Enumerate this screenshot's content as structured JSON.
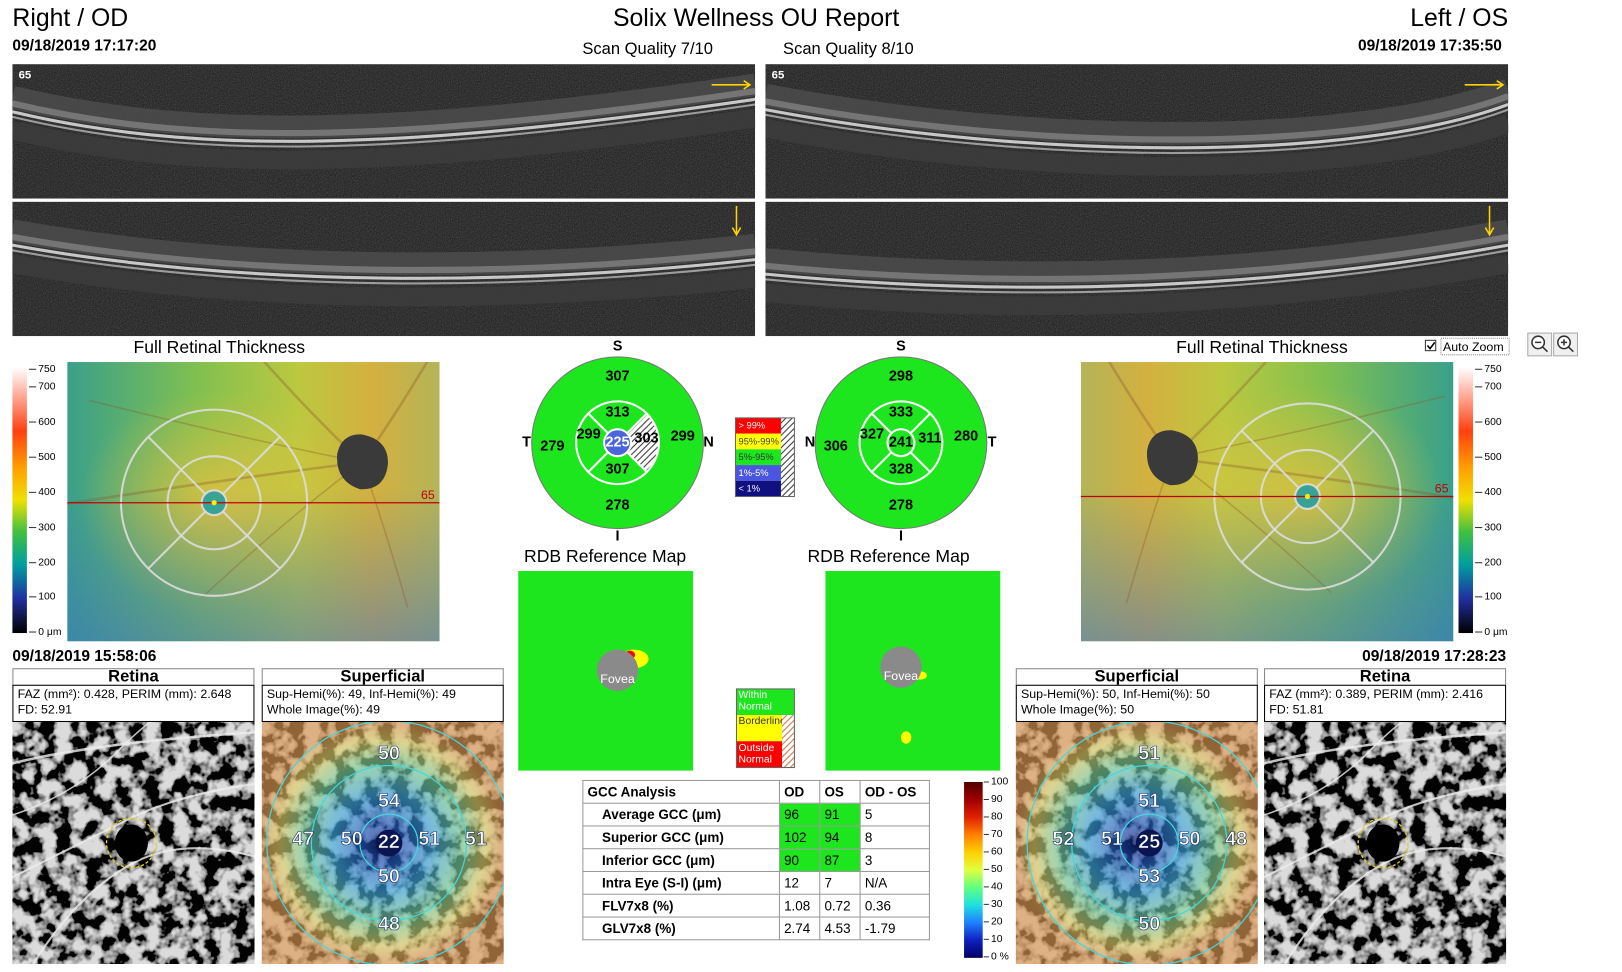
{
  "header": {
    "title": "Solix Wellness OU Report",
    "auto_zoom": "Auto Zoom"
  },
  "od": {
    "side": "Right / OD",
    "datetime": "09/18/2019 17:17:20",
    "scan_quality": "Scan Quality 7/10",
    "bscan_label": "65",
    "thickness_title": "Full Retinal Thickness",
    "scan_line_label": "65",
    "sector_labels": [
      "S",
      "I",
      "T",
      "N"
    ],
    "sector_values": [
      "307",
      "313",
      "299",
      "225",
      "303",
      "307",
      "278",
      "279",
      "299"
    ],
    "rdb_title": "RDB Reference Map",
    "fovea": "Fovea",
    "angio_datetime": "09/18/2019 15:58:06",
    "retina": {
      "header": "Retina",
      "lines": [
        "FAZ (mm²): 0.428, PERIM (mm): 2.648",
        "FD: 52.91"
      ]
    },
    "superficial": {
      "header": "Superficial",
      "lines": [
        "Sup-Hemi(%): 49, Inf-Hemi(%): 49",
        "Whole Image(%): 49"
      ],
      "values": [
        "50",
        "54",
        "47",
        "50",
        "22",
        "51",
        "51",
        "50",
        "48"
      ]
    }
  },
  "os": {
    "side": "Left / OS",
    "datetime": "09/18/2019 17:35:50",
    "scan_quality": "Scan Quality 8/10",
    "bscan_label": "65",
    "thickness_title": "Full Retinal Thickness",
    "scan_line_label": "65",
    "sector_labels": [
      "S",
      "I",
      "N",
      "T"
    ],
    "sector_values": [
      "298",
      "333",
      "327",
      "241",
      "311",
      "328",
      "278",
      "306",
      "280"
    ],
    "rdb_title": "RDB Reference Map",
    "fovea": "Fovea",
    "angio_datetime": "09/18/2019 17:28:23",
    "retina": {
      "header": "Retina",
      "lines": [
        "FAZ (mm²): 0.389, PERIM (mm): 2.416",
        "FD: 51.81"
      ]
    },
    "superficial": {
      "header": "Superficial",
      "lines": [
        "Sup-Hemi(%): 50, Inf-Hemi(%): 50",
        "Whole Image(%): 50"
      ],
      "values": [
        "51",
        "51",
        "52",
        "51",
        "25",
        "50",
        "48",
        "53",
        "50"
      ]
    }
  },
  "thickness_scale": [
    "750",
    "700",
    "600",
    "500",
    "400",
    "300",
    "200",
    "100",
    "0 μm"
  ],
  "sector_legend": [
    "> 99%",
    "95%-99%",
    "5%-95%",
    "1%-5%",
    "< 1%"
  ],
  "rdb_legend": [
    "Within Normal",
    "Borderline",
    "Outside Normal"
  ],
  "gcc": {
    "header": [
      "GCC Analysis",
      "OD",
      "OS",
      "OD - OS"
    ],
    "rows": [
      [
        "Average GCC (μm)",
        "96",
        "91",
        "5"
      ],
      [
        "Superior GCC (μm)",
        "102",
        "94",
        "8"
      ],
      [
        "Inferior GCC (μm)",
        "90",
        "87",
        "3"
      ],
      [
        "Intra Eye (S-I) (μm)",
        "12",
        "7",
        "N/A"
      ],
      [
        "FLV7x8 (%)",
        "1.08",
        "0.72",
        "0.36"
      ],
      [
        "GLV7x8 (%)",
        "2.74",
        "4.53",
        "-1.79"
      ]
    ]
  },
  "density_scale": [
    "100",
    "90",
    "80",
    "70",
    "60",
    "50",
    "40",
    "30",
    "20",
    "10",
    "0 %"
  ]
}
